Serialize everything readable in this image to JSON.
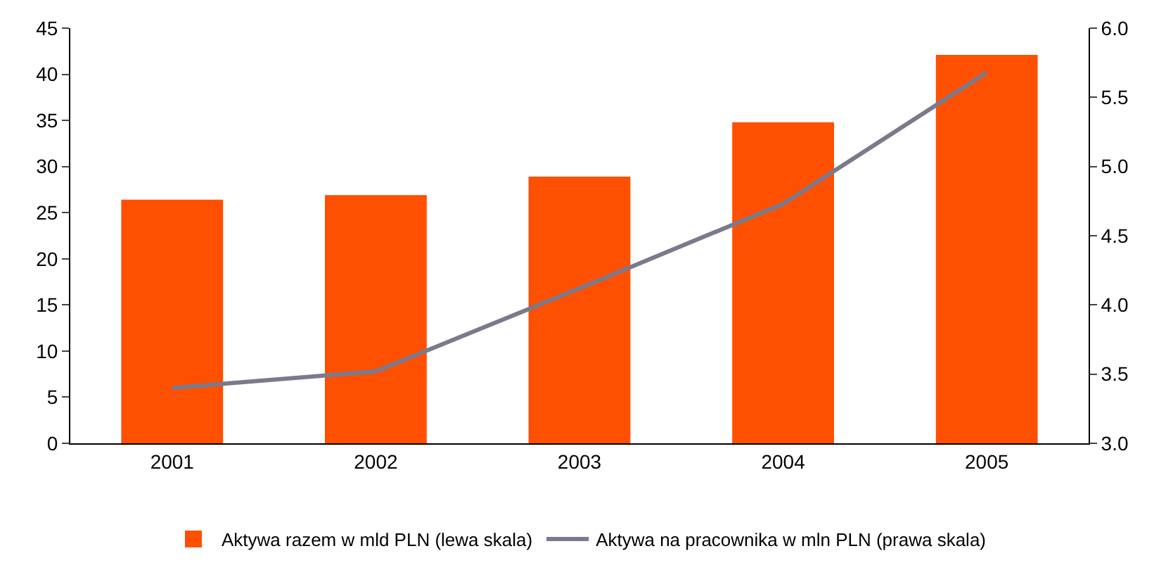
{
  "chart_data": {
    "type": "bar",
    "categories": [
      "2001",
      "2002",
      "2003",
      "2004",
      "2005"
    ],
    "series": [
      {
        "name": "Aktywa razem w mld PLN (lewa skala)",
        "color": "#ff4f00",
        "values": [
          26.4,
          26.9,
          28.9,
          34.8,
          42.1
        ]
      },
      {
        "name": "Aktywa na pracownika w mln PLN (prawa skala)",
        "type": "line",
        "axis": "y2",
        "color": "#7a7a8c",
        "values": [
          3.4,
          3.52,
          4.12,
          4.73,
          5.68
        ]
      }
    ],
    "ylim": [
      0,
      45
    ],
    "yticks": [
      0,
      5,
      10,
      15,
      20,
      25,
      30,
      35,
      40,
      45
    ],
    "y2lim": [
      3.0,
      6.0
    ],
    "y2ticks": [
      {
        "value": 3.0,
        "label": "3.0"
      },
      {
        "value": 3.5,
        "label": "3.5"
      },
      {
        "value": 4.0,
        "label": "4.0"
      },
      {
        "value": 4.5,
        "label": "4.5"
      },
      {
        "value": 5.0,
        "label": "5.0"
      },
      {
        "value": 5.5,
        "label": "5.5"
      },
      {
        "value": 6.0,
        "label": "6.0"
      }
    ],
    "grid": false,
    "legend": "bottom",
    "marker": "none"
  }
}
